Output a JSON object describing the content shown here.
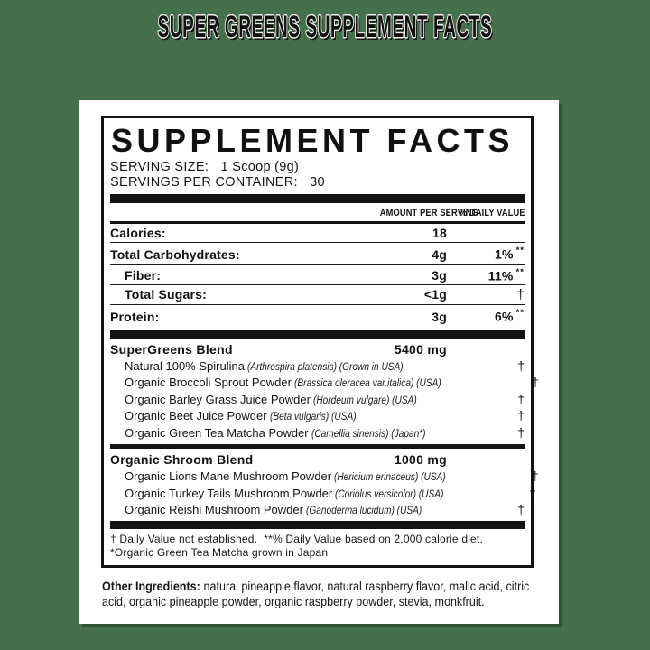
{
  "page": {
    "title": "SUPER GREENS SUPPLEMENT FACTS"
  },
  "theme": {
    "background_color": "#44704B",
    "card_color": "#FFFFFF",
    "ink_color": "#111111"
  },
  "label": {
    "title": "SUPPLEMENT FACTS",
    "serving_size_label": "SERVING SIZE:",
    "serving_size_value": "1 Scoop (9g)",
    "servings_per_container_label": "SERVINGS PER CONTAINER:",
    "servings_per_container_value": "30",
    "columns": {
      "amount": "AMOUNT PER SERVING",
      "daily_value": "% DAILY VALUE"
    },
    "nutrients": [
      {
        "name": "Calories:",
        "amount": "18",
        "dv": "",
        "dv_note": "",
        "indent": false
      },
      {
        "name": "Total Carbohydrates:",
        "amount": "4g",
        "dv": "1%",
        "dv_note": "**",
        "indent": false
      },
      {
        "name": "Fiber:",
        "amount": "3g",
        "dv": "11%",
        "dv_note": "**",
        "indent": true
      },
      {
        "name": "Total Sugars:",
        "amount": "<1g",
        "dv": "†",
        "dv_note": "",
        "indent": true
      },
      {
        "name": "Protein:",
        "amount": "3g",
        "dv": "6%",
        "dv_note": "**",
        "indent": false
      }
    ],
    "blends": [
      {
        "name": "SuperGreens Blend",
        "amount": "5400 mg",
        "ingredients": [
          {
            "name": "Natural 100% Spirulina",
            "detail": "(Arthrospira platensis) (Grown in USA)",
            "dv": "†"
          },
          {
            "name": "Organic Broccoli Sprout Powder",
            "detail": "(Brassica oleracea var.italica) (USA)",
            "dv": "†"
          },
          {
            "name": "Organic Barley Grass Juice Powder",
            "detail": "(Hordeum vulgare) (USA)",
            "dv": "†"
          },
          {
            "name": "Organic Beet Juice Powder",
            "detail": "(Beta vulgaris) (USA)",
            "dv": "†"
          },
          {
            "name": "Organic Green Tea Matcha Powder",
            "detail": "(Camellia sinensis) (Japan*)",
            "dv": "†"
          }
        ]
      },
      {
        "name": "Organic Shroom Blend",
        "amount": "1000 mg",
        "ingredients": [
          {
            "name": "Organic Lions Mane Mushroom Powder",
            "detail": "(Hericium erinaceus) (USA)",
            "dv": "†"
          },
          {
            "name": "Organic Turkey Tails Mushroom Powder",
            "detail": "(Coriolus versicolor) (USA)",
            "dv": "†"
          },
          {
            "name": "Organic Reishi Mushroom Powder",
            "detail": "(Ganoderma lucidum) (USA)",
            "dv": "†"
          }
        ]
      }
    ],
    "footnotes": [
      "† Daily Value not established.  **% Daily Value based on 2,000 calorie diet.",
      "*Organic Green Tea Matcha grown in Japan"
    ],
    "other_ingredients": {
      "label": "Other Ingredients:",
      "text": "natural pineapple flavor, natural raspberry flavor, malic acid, citric acid, organic pineapple powder, organic raspberry powder, stevia, monkfruit."
    }
  }
}
